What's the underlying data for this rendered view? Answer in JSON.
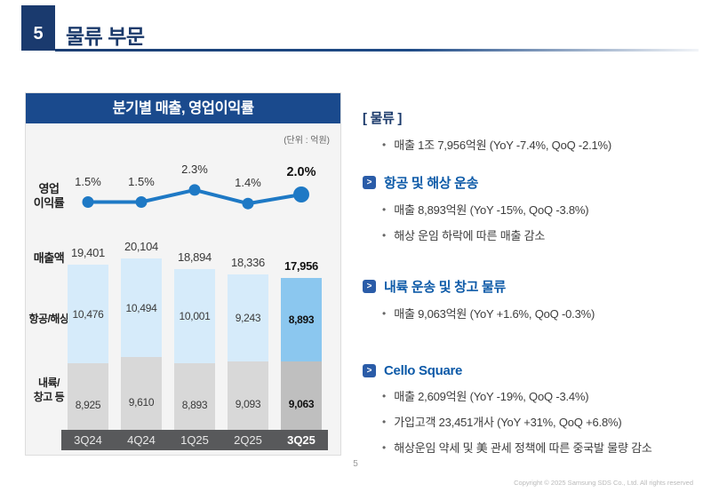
{
  "header": {
    "number": "5",
    "title": "물류 부문"
  },
  "chart": {
    "panel_title": "분기별 매출, 영업이익률",
    "unit_label": "(단위 : 억원)",
    "row_labels": {
      "margin_line1": "영업",
      "margin_line2": "이익률",
      "revenue": "매출액",
      "air_sea": "항공/해상",
      "inland_line1": "내륙/",
      "inland_line2": "창고 등"
    }
  },
  "chart_data": {
    "type": "bar",
    "subtype": "stacked-bar-with-line",
    "title": "분기별 매출, 영업이익률",
    "unit": "억원",
    "categories": [
      "3Q24",
      "4Q24",
      "1Q25",
      "2Q25",
      "3Q25"
    ],
    "highlight_index": 4,
    "line_series": {
      "name": "영업이익률",
      "unit": "%",
      "values": [
        1.5,
        1.5,
        2.3,
        1.4,
        2.0
      ],
      "labels": [
        "1.5%",
        "1.5%",
        "2.3%",
        "1.4%",
        "2.0%"
      ]
    },
    "series": [
      {
        "name": "항공/해상",
        "values": [
          10476,
          10494,
          10001,
          9243,
          8893
        ],
        "labels": [
          "10,476",
          "10,494",
          "10,001",
          "9,243",
          "8,893"
        ]
      },
      {
        "name": "내륙/창고 등",
        "values": [
          8925,
          9610,
          8893,
          9093,
          9063
        ],
        "labels": [
          "8,925",
          "9,610",
          "8,893",
          "9,093",
          "9,063"
        ]
      }
    ],
    "totals": {
      "name": "매출액",
      "values": [
        19401,
        20104,
        18894,
        18336,
        17956
      ],
      "labels": [
        "19,401",
        "20,104",
        "18,894",
        "18,336",
        "17,956"
      ]
    }
  },
  "sections": [
    {
      "style": "bracket",
      "title": "[ 물류 ]",
      "bullets": [
        "매출 1조 7,956억원 (YoY -7.4%, QoQ -2.1%)"
      ]
    },
    {
      "style": "arrow",
      "title": "항공 및 해상 운송",
      "bullets": [
        "매출 8,893억원 (YoY -15%, QoQ -3.8%)",
        "해상 운임 하락에 따른 매출 감소"
      ]
    },
    {
      "style": "arrow",
      "title": "내륙 운송 및 창고 물류",
      "bullets": [
        "매출 9,063억원 (YoY +1.6%, QoQ -0.3%)"
      ]
    },
    {
      "style": "arrow",
      "title": "Cello Square",
      "bullets": [
        "매출 2,609억원 (YoY -19%, QoQ -3.4%)",
        "가입고객 23,451개사 (YoY +31%, QoQ +6.8%)",
        "해상운임 약세 및 美 관세 정책에 따른 중국발 물량 감소"
      ]
    }
  ],
  "footer": {
    "page_number": "5",
    "copyright": "Copyright © 2025 Samsung SDS Co., Ltd. All rights reserved"
  },
  "icons": {
    "section_arrow": ">",
    "bullet_dot": "•"
  },
  "colors": {
    "navy": "#1a3a6e",
    "chart_header_bg": "#1a4a8d",
    "heading_blue": "#0d5aa8",
    "arrow_icon_bg": "#2a5ca8",
    "line_blue": "#1e79c5",
    "bar_air_sea": "#d6ebfa",
    "bar_air_sea_highlight": "#8bc7ef",
    "bar_inland": "#d8d8d8",
    "bar_inland_highlight": "#bfbfbf",
    "axis_band": "#58595b",
    "panel_bg": "#f4f4f4"
  }
}
